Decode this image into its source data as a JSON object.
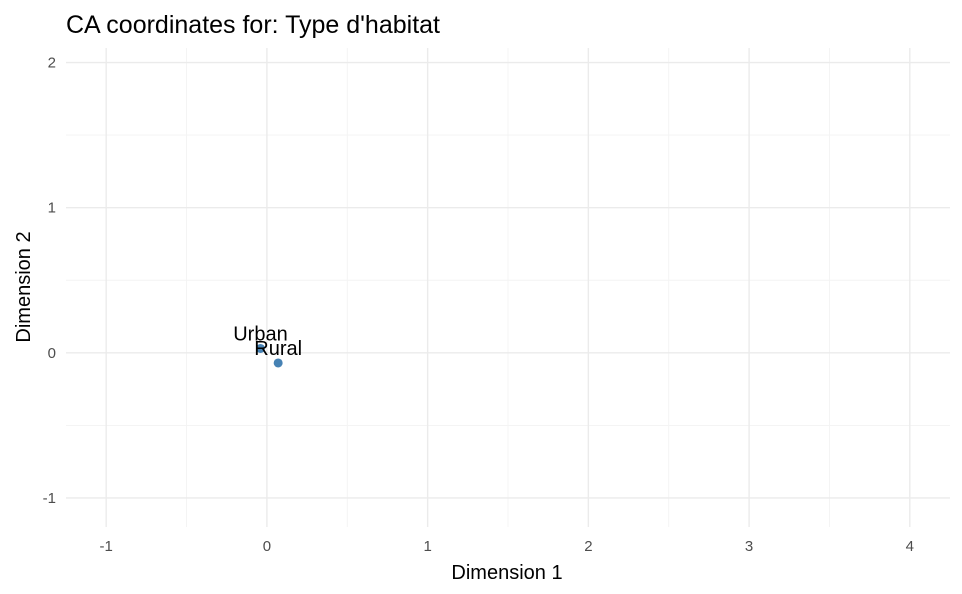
{
  "chart_data": {
    "type": "scatter",
    "title": "CA coordinates for: Type d'habitat",
    "xlabel": "Dimension 1",
    "ylabel": "Dimension 2",
    "xlim": [
      -1.25,
      4.25
    ],
    "ylim": [
      -1.2,
      2.1
    ],
    "x_ticks": [
      -1,
      0,
      1,
      2,
      3,
      4
    ],
    "y_ticks": [
      -1,
      0,
      1,
      2
    ],
    "grid": true,
    "point_color": "#4682b4",
    "points": [
      {
        "label": "Urban",
        "x": -0.04,
        "y": 0.03
      },
      {
        "label": "Rural",
        "x": 0.07,
        "y": -0.07
      }
    ]
  }
}
